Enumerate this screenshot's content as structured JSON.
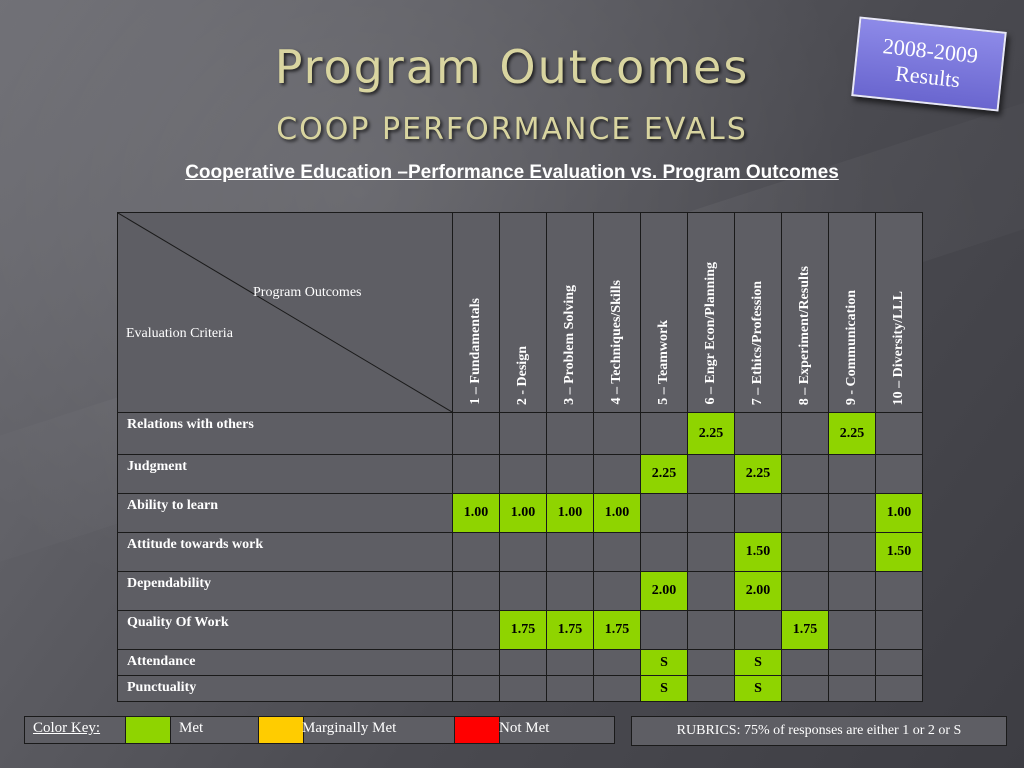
{
  "slide": {
    "title": "Program Outcomes",
    "subtitle": "COOP PERFORMANCE EVALS",
    "badge_line1": "2008-2009",
    "badge_line2": "Results",
    "caption": "Cooperative Education –Performance Evaluation vs. Program Outcomes"
  },
  "table": {
    "corner_top": "Program Outcomes",
    "corner_bottom": "Evaluation Criteria",
    "columns": [
      "1 – Fundamentals",
      "2 - Design",
      "3 – Problem Solving",
      "4 – Techniques/Skills",
      "5 – Teamwork",
      "6 – Engr Econ/Planning",
      "7 – Ethics/Profession",
      "8 – Experiment/Results",
      "9 - Communication",
      "10 – Diversity/LLL"
    ],
    "rows": [
      {
        "label": "Relations with others",
        "cells": [
          "",
          "",
          "",
          "",
          "",
          "2.25",
          "",
          "",
          "2.25",
          ""
        ]
      },
      {
        "label": "Judgment",
        "cells": [
          "",
          "",
          "",
          "",
          "2.25",
          "",
          "2.25",
          "",
          "",
          ""
        ]
      },
      {
        "label": "Ability to learn",
        "cells": [
          "1.00",
          "1.00",
          "1.00",
          "1.00",
          "",
          "",
          "",
          "",
          "",
          "1.00"
        ]
      },
      {
        "label": "Attitude towards work",
        "cells": [
          "",
          "",
          "",
          "",
          "",
          "",
          "1.50",
          "",
          "",
          "1.50"
        ]
      },
      {
        "label": "Dependability",
        "cells": [
          "",
          "",
          "",
          "",
          "2.00",
          "",
          "2.00",
          "",
          "",
          ""
        ]
      },
      {
        "label": "Quality Of Work",
        "cells": [
          "",
          "1.75",
          "1.75",
          "1.75",
          "",
          "",
          "",
          "1.75",
          "",
          ""
        ]
      },
      {
        "label": "Attendance",
        "cells": [
          "",
          "",
          "",
          "",
          "S",
          "",
          "S",
          "",
          "",
          ""
        ]
      },
      {
        "label": "Punctuality",
        "cells": [
          "",
          "",
          "",
          "",
          "S",
          "",
          "S",
          "",
          "",
          ""
        ]
      }
    ]
  },
  "color_key": {
    "label": "Color Key:",
    "met": "Met",
    "marginal": "Marginally Met",
    "not_met": "Not Met",
    "met_color": "#8fd400",
    "marginal_color": "#ffcc00",
    "not_met_color": "#ff0000"
  },
  "rubric": "RUBRICS: 75% of responses are either 1 or 2 or S"
}
